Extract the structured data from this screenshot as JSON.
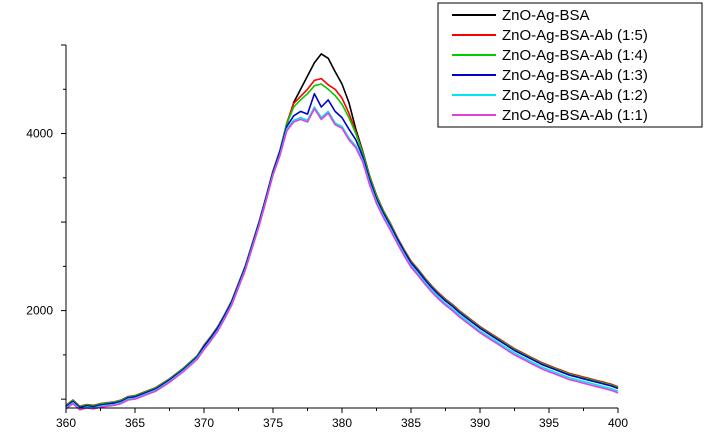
{
  "chart_data": {
    "type": "line",
    "title": "",
    "xlabel": "",
    "ylabel": "",
    "xlim": [
      360,
      400
    ],
    "ylim": [
      900,
      5000
    ],
    "x_ticks": [
      360,
      365,
      370,
      375,
      380,
      385,
      390,
      395,
      400
    ],
    "x_tick_labels": [
      "360",
      "365",
      "370",
      "375",
      "380",
      "385",
      "390",
      "395",
      "400"
    ],
    "y_ticks": [
      2000,
      4000
    ],
    "y_tick_labels": [
      "2000",
      "4000"
    ],
    "grid": false,
    "legend_position": "top-right",
    "x": [
      360,
      360.5,
      361,
      361.5,
      362,
      362.5,
      363,
      363.5,
      364,
      364.5,
      365,
      365.5,
      366,
      366.5,
      367,
      367.5,
      368,
      368.5,
      369,
      369.5,
      370,
      370.5,
      371,
      371.5,
      372,
      372.5,
      373,
      373.5,
      374,
      374.5,
      375,
      375.5,
      376,
      376.5,
      377,
      377.5,
      378,
      378.5,
      379,
      379.5,
      380,
      380.5,
      381,
      381.5,
      382,
      382.5,
      383,
      383.5,
      384,
      384.5,
      385,
      385.5,
      386,
      386.5,
      387,
      387.5,
      388,
      388.5,
      389,
      389.5,
      390,
      390.5,
      391,
      391.5,
      392,
      392.5,
      393,
      393.5,
      394,
      394.5,
      395,
      395.5,
      396,
      396.5,
      397,
      397.5,
      398,
      398.5,
      399,
      399.5,
      400
    ],
    "series": [
      {
        "name": "ZnO-Ag-BSA",
        "color": "#000000",
        "values": [
          920,
          980,
          910,
          930,
          920,
          940,
          950,
          960,
          980,
          1020,
          1030,
          1060,
          1090,
          1120,
          1170,
          1220,
          1280,
          1340,
          1410,
          1480,
          1600,
          1700,
          1810,
          1950,
          2100,
          2300,
          2500,
          2750,
          3000,
          3280,
          3570,
          3800,
          4100,
          4350,
          4500,
          4650,
          4800,
          4900,
          4850,
          4700,
          4560,
          4350,
          4050,
          3800,
          3520,
          3300,
          3120,
          2980,
          2820,
          2680,
          2550,
          2460,
          2360,
          2270,
          2190,
          2120,
          2060,
          1990,
          1930,
          1870,
          1810,
          1760,
          1710,
          1660,
          1610,
          1560,
          1520,
          1480,
          1440,
          1400,
          1370,
          1340,
          1310,
          1280,
          1260,
          1240,
          1220,
          1200,
          1180,
          1160,
          1130
        ]
      },
      {
        "name": "ZnO-Ag-BSA-Ab (1:5)",
        "color": "#ff0000",
        "values": [
          930,
          990,
          920,
          940,
          930,
          950,
          960,
          970,
          990,
          1030,
          1040,
          1070,
          1100,
          1130,
          1180,
          1230,
          1290,
          1350,
          1420,
          1490,
          1610,
          1710,
          1820,
          1960,
          2110,
          2310,
          2510,
          2760,
          3010,
          3290,
          3580,
          3810,
          4120,
          4340,
          4420,
          4500,
          4600,
          4620,
          4550,
          4500,
          4400,
          4230,
          4020,
          3790,
          3520,
          3300,
          3130,
          2990,
          2830,
          2690,
          2560,
          2470,
          2370,
          2280,
          2200,
          2130,
          2070,
          2000,
          1940,
          1880,
          1820,
          1770,
          1720,
          1670,
          1620,
          1570,
          1530,
          1490,
          1450,
          1410,
          1380,
          1350,
          1320,
          1290,
          1270,
          1250,
          1230,
          1210,
          1190,
          1170,
          1140
        ]
      },
      {
        "name": "ZnO-Ag-BSA-Ab (1:4)",
        "color": "#00cc00",
        "values": [
          925,
          985,
          915,
          935,
          925,
          945,
          955,
          965,
          985,
          1025,
          1035,
          1065,
          1095,
          1125,
          1175,
          1225,
          1285,
          1345,
          1415,
          1485,
          1605,
          1705,
          1815,
          1955,
          2105,
          2305,
          2505,
          2755,
          3005,
          3285,
          3575,
          3805,
          4110,
          4300,
          4380,
          4450,
          4540,
          4560,
          4500,
          4430,
          4330,
          4180,
          4000,
          3780,
          3510,
          3290,
          3120,
          2980,
          2820,
          2680,
          2550,
          2460,
          2360,
          2270,
          2190,
          2120,
          2060,
          1990,
          1930,
          1870,
          1810,
          1760,
          1710,
          1660,
          1610,
          1560,
          1520,
          1480,
          1440,
          1400,
          1370,
          1340,
          1310,
          1280,
          1260,
          1240,
          1220,
          1200,
          1180,
          1160,
          1130
        ]
      },
      {
        "name": "ZnO-Ag-BSA-Ab (1:3)",
        "color": "#0000cc",
        "values": [
          915,
          975,
          905,
          925,
          915,
          935,
          945,
          955,
          975,
          1015,
          1025,
          1055,
          1085,
          1115,
          1165,
          1215,
          1275,
          1335,
          1405,
          1475,
          1595,
          1695,
          1805,
          1945,
          2095,
          2295,
          2495,
          2745,
          2995,
          3275,
          3565,
          3795,
          4080,
          4200,
          4250,
          4220,
          4450,
          4300,
          4380,
          4250,
          4180,
          4050,
          3930,
          3740,
          3480,
          3260,
          3100,
          2960,
          2810,
          2670,
          2540,
          2450,
          2350,
          2260,
          2180,
          2110,
          2050,
          1980,
          1920,
          1860,
          1800,
          1750,
          1700,
          1650,
          1600,
          1550,
          1510,
          1470,
          1430,
          1390,
          1360,
          1330,
          1300,
          1270,
          1250,
          1230,
          1210,
          1190,
          1170,
          1150,
          1120
        ]
      },
      {
        "name": "ZnO-Ag-BSA-Ab (1:2)",
        "color": "#00e5ee",
        "values": [
          900,
          960,
          890,
          910,
          900,
          920,
          930,
          940,
          960,
          1000,
          1010,
          1040,
          1070,
          1100,
          1150,
          1200,
          1260,
          1320,
          1390,
          1460,
          1570,
          1670,
          1780,
          1920,
          2070,
          2270,
          2470,
          2720,
          2970,
          3250,
          3540,
          3760,
          4050,
          4150,
          4180,
          4150,
          4300,
          4180,
          4250,
          4120,
          4080,
          3950,
          3860,
          3700,
          3440,
          3230,
          3070,
          2930,
          2780,
          2640,
          2510,
          2420,
          2320,
          2230,
          2150,
          2080,
          2020,
          1950,
          1890,
          1830,
          1770,
          1720,
          1670,
          1620,
          1570,
          1520,
          1480,
          1440,
          1400,
          1360,
          1330,
          1300,
          1270,
          1240,
          1220,
          1200,
          1180,
          1160,
          1140,
          1120,
          1090
        ]
      },
      {
        "name": "ZnO-Ag-BSA-Ab (1:1)",
        "color": "#e040e0",
        "values": [
          890,
          950,
          880,
          900,
          890,
          910,
          920,
          930,
          950,
          990,
          1000,
          1030,
          1060,
          1090,
          1140,
          1190,
          1250,
          1310,
          1380,
          1450,
          1560,
          1660,
          1770,
          1910,
          2060,
          2260,
          2460,
          2710,
          2960,
          3240,
          3530,
          3750,
          4030,
          4130,
          4160,
          4130,
          4280,
          4160,
          4230,
          4100,
          4060,
          3930,
          3840,
          3680,
          3420,
          3210,
          3050,
          2910,
          2760,
          2620,
          2490,
          2400,
          2300,
          2210,
          2130,
          2060,
          2000,
          1930,
          1870,
          1810,
          1750,
          1700,
          1650,
          1600,
          1550,
          1500,
          1460,
          1420,
          1380,
          1340,
          1310,
          1280,
          1250,
          1220,
          1200,
          1180,
          1160,
          1140,
          1120,
          1100,
          1070
        ]
      }
    ]
  }
}
